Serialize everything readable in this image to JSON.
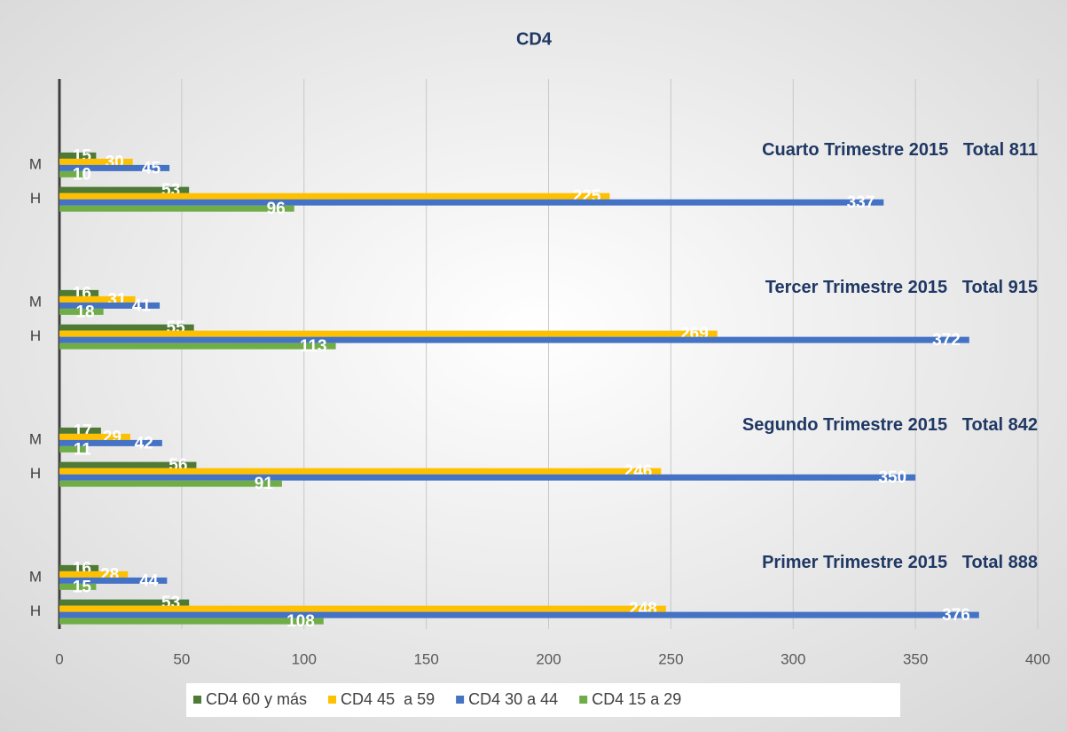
{
  "chart_data": {
    "type": "hbar",
    "title": "CD4",
    "categories": [
      null,
      null,
      "M",
      "H",
      null,
      null,
      "M",
      "H",
      null,
      null,
      "M",
      "H",
      null,
      null,
      "M",
      "H"
    ],
    "series": [
      {
        "name": "CD4 60 y más",
        "color": "#4e7a36",
        "values": [
          null,
          null,
          15,
          53,
          null,
          null,
          16,
          55,
          null,
          null,
          17,
          56,
          null,
          null,
          16,
          53
        ]
      },
      {
        "name": "CD4 45  a 59",
        "color": "#ffc000",
        "values": [
          null,
          null,
          30,
          225,
          null,
          null,
          31,
          269,
          null,
          null,
          29,
          246,
          null,
          null,
          28,
          248
        ]
      },
      {
        "name": "CD4 30 a 44",
        "color": "#4472c4",
        "values": [
          null,
          null,
          45,
          337,
          null,
          null,
          41,
          372,
          null,
          null,
          42,
          350,
          null,
          null,
          44,
          376
        ]
      },
      {
        "name": "CD4 15 a 29",
        "color": "#70ad47",
        "values": [
          null,
          null,
          10,
          96,
          null,
          null,
          18,
          113,
          null,
          null,
          11,
          91,
          null,
          null,
          15,
          108
        ]
      }
    ],
    "annotations": [
      "Cuarto Trimestre 2015   Total 811",
      "Tercer Trimestre 2015   Total 915",
      "Segundo Trimestre 2015   Total 842",
      "Primer Trimestre 2015   Total 888"
    ],
    "xlim": [
      0,
      400
    ],
    "xticks": [
      0,
      50,
      100,
      150,
      200,
      250,
      300,
      350,
      400
    ],
    "grid": true,
    "legend": "bottom"
  }
}
